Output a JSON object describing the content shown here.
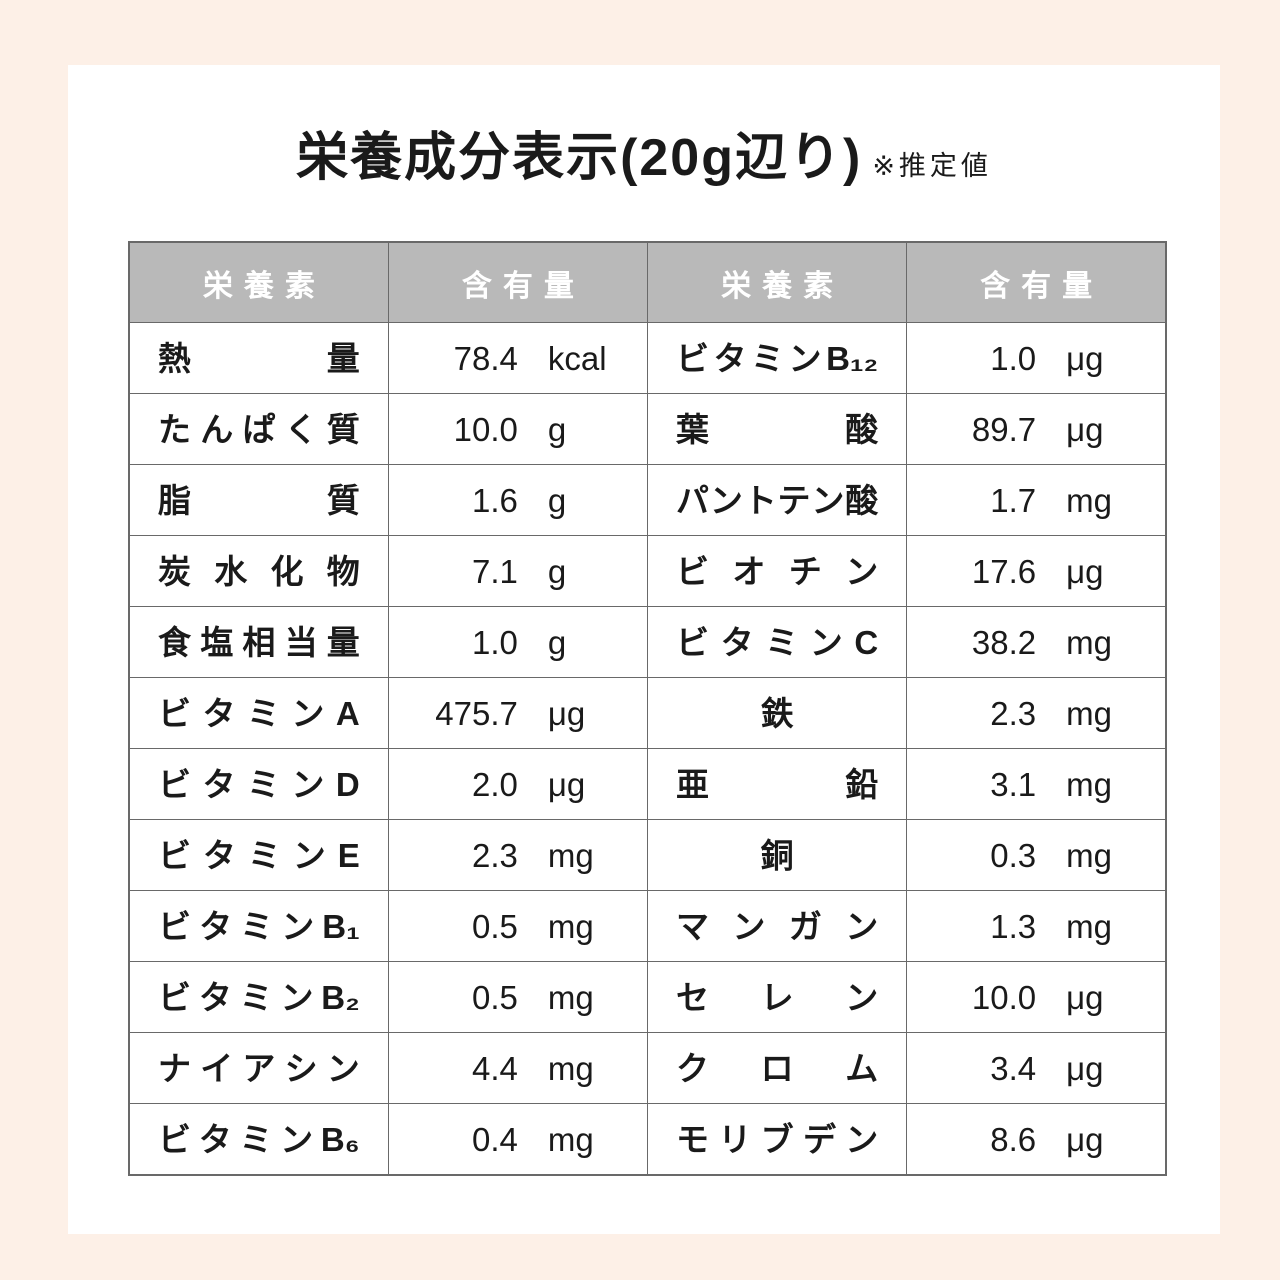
{
  "colors": {
    "page_background": "#fdf0e7",
    "card_background": "#ffffff",
    "header_background": "#b9b9b9",
    "header_text": "#ffffff",
    "border": "#696969",
    "text": "#1a1a1a"
  },
  "title": {
    "main": "栄養成分表示(20g辺り)",
    "note": "※推定値"
  },
  "table": {
    "columns": [
      "栄養素",
      "含有量",
      "栄養素",
      "含有量"
    ],
    "rows": [
      {
        "left": {
          "name": "熱量",
          "value": "78.4",
          "unit": "kcal"
        },
        "right": {
          "name": "ビタミンB₁₂",
          "value": "1.0",
          "unit": "μg"
        }
      },
      {
        "left": {
          "name": "たんぱく質",
          "value": "10.0",
          "unit": "g"
        },
        "right": {
          "name": "葉酸",
          "value": "89.7",
          "unit": "μg"
        }
      },
      {
        "left": {
          "name": "脂質",
          "value": "1.6",
          "unit": "g"
        },
        "right": {
          "name": "パントテン酸",
          "value": "1.7",
          "unit": "mg"
        }
      },
      {
        "left": {
          "name": "炭水化物",
          "value": "7.1",
          "unit": "g"
        },
        "right": {
          "name": "ビオチン",
          "value": "17.6",
          "unit": "μg"
        }
      },
      {
        "left": {
          "name": "食塩相当量",
          "value": "1.0",
          "unit": "g"
        },
        "right": {
          "name": "ビタミンC",
          "value": "38.2",
          "unit": "mg"
        }
      },
      {
        "left": {
          "name": "ビタミンA",
          "value": "475.7",
          "unit": "μg"
        },
        "right": {
          "name": "鉄",
          "value": "2.3",
          "unit": "mg"
        }
      },
      {
        "left": {
          "name": "ビタミンD",
          "value": "2.0",
          "unit": "μg"
        },
        "right": {
          "name": "亜鉛",
          "value": "3.1",
          "unit": "mg"
        }
      },
      {
        "left": {
          "name": "ビタミンE",
          "value": "2.3",
          "unit": "mg"
        },
        "right": {
          "name": "銅",
          "value": "0.3",
          "unit": "mg"
        }
      },
      {
        "left": {
          "name": "ビタミンB₁",
          "value": "0.5",
          "unit": "mg"
        },
        "right": {
          "name": "マンガン",
          "value": "1.3",
          "unit": "mg"
        }
      },
      {
        "left": {
          "name": "ビタミンB₂",
          "value": "0.5",
          "unit": "mg"
        },
        "right": {
          "name": "セレン",
          "value": "10.0",
          "unit": "μg"
        }
      },
      {
        "left": {
          "name": "ナイアシン",
          "value": "4.4",
          "unit": "mg"
        },
        "right": {
          "name": "クロム",
          "value": "3.4",
          "unit": "μg"
        }
      },
      {
        "left": {
          "name": "ビタミンB₆",
          "value": "0.4",
          "unit": "mg"
        },
        "right": {
          "name": "モリブデン",
          "value": "8.6",
          "unit": "μg"
        }
      }
    ]
  }
}
